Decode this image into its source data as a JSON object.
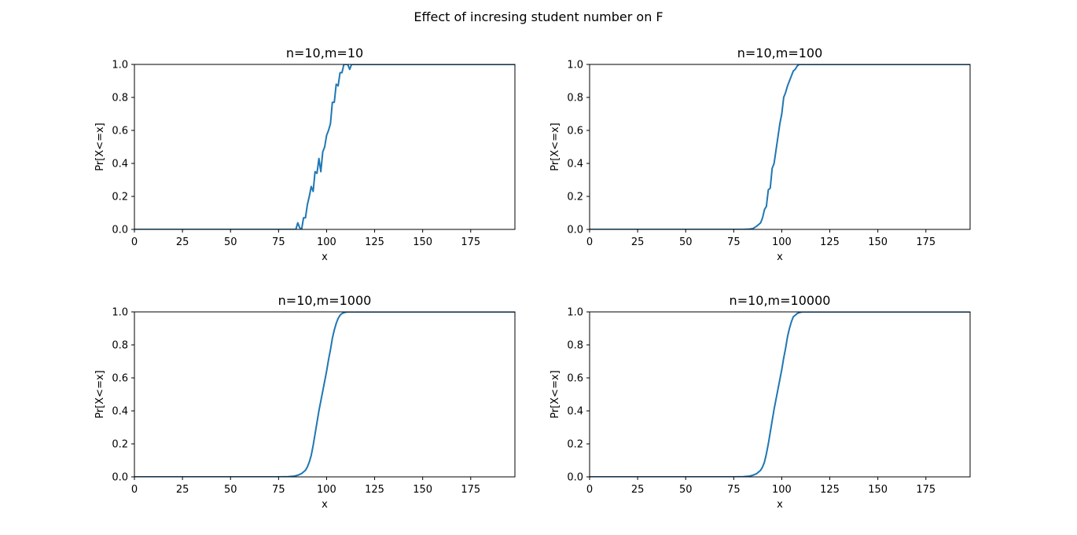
{
  "figure": {
    "title": "Effect of incresing student number on F",
    "line_color": "#1f77b4"
  },
  "chart_data": [
    {
      "type": "line",
      "title": "n=10,m=10",
      "xlabel": "x",
      "ylabel": "Pr[X<=x]",
      "xlim": [
        0,
        198
      ],
      "ylim": [
        0,
        1
      ],
      "xticks": [
        "0",
        "25",
        "50",
        "75",
        "100",
        "125",
        "150",
        "175"
      ],
      "yticks": [
        "0.0",
        "0.2",
        "0.4",
        "0.6",
        "0.8",
        "1.0"
      ],
      "grid": false,
      "series": [
        {
          "x": [
            0,
            84,
            85,
            86,
            87,
            88,
            89,
            90,
            91,
            92,
            93,
            94,
            95,
            96,
            97,
            98,
            99,
            100,
            101,
            102,
            103,
            104,
            105,
            106,
            107,
            108,
            109,
            110,
            111,
            112,
            113,
            114,
            198
          ],
          "y": [
            0,
            0,
            0.04,
            0.01,
            0.0,
            0.07,
            0.07,
            0.15,
            0.2,
            0.26,
            0.23,
            0.35,
            0.34,
            0.43,
            0.35,
            0.47,
            0.5,
            0.57,
            0.6,
            0.64,
            0.77,
            0.77,
            0.88,
            0.87,
            0.95,
            0.95,
            1.0,
            1.0,
            1.0,
            0.97,
            1.0,
            1.0,
            1.0
          ]
        }
      ]
    },
    {
      "type": "line",
      "title": "n=10,m=100",
      "xlabel": "x",
      "ylabel": "Pr[X<=x]",
      "xlim": [
        0,
        198
      ],
      "ylim": [
        0,
        1
      ],
      "xticks": [
        "0",
        "25",
        "50",
        "75",
        "100",
        "125",
        "150",
        "175"
      ],
      "yticks": [
        "0.0",
        "0.2",
        "0.4",
        "0.6",
        "0.8",
        "1.0"
      ],
      "grid": false,
      "series": [
        {
          "x": [
            0,
            80,
            83,
            85,
            87,
            88,
            89,
            90,
            91,
            92,
            93,
            94,
            95,
            96,
            97,
            98,
            99,
            100,
            101,
            102,
            103,
            104,
            105,
            106,
            107,
            108,
            109,
            110,
            111,
            112,
            198
          ],
          "y": [
            0,
            0,
            0.002,
            0.005,
            0.02,
            0.03,
            0.04,
            0.07,
            0.12,
            0.14,
            0.24,
            0.25,
            0.37,
            0.4,
            0.48,
            0.56,
            0.64,
            0.7,
            0.8,
            0.83,
            0.87,
            0.9,
            0.93,
            0.96,
            0.97,
            0.99,
            1.0,
            1.0,
            1.0,
            1.0,
            1.0
          ]
        }
      ]
    },
    {
      "type": "line",
      "title": "n=10,m=1000",
      "xlabel": "x",
      "ylabel": "Pr[X<=x]",
      "xlim": [
        0,
        198
      ],
      "ylim": [
        0,
        1
      ],
      "xticks": [
        "0",
        "25",
        "50",
        "75",
        "100",
        "125",
        "150",
        "175"
      ],
      "yticks": [
        "0.0",
        "0.2",
        "0.4",
        "0.6",
        "0.8",
        "1.0"
      ],
      "grid": false,
      "series": [
        {
          "x": [
            0,
            75,
            80,
            83,
            85,
            87,
            89,
            90,
            91,
            92,
            93,
            94,
            95,
            96,
            97,
            98,
            99,
            100,
            101,
            102,
            103,
            104,
            105,
            106,
            107,
            108,
            109,
            110,
            111,
            112,
            113,
            115,
            120,
            198
          ],
          "y": [
            0,
            0.0,
            0.001,
            0.004,
            0.01,
            0.02,
            0.04,
            0.06,
            0.09,
            0.13,
            0.19,
            0.26,
            0.33,
            0.4,
            0.46,
            0.52,
            0.58,
            0.64,
            0.71,
            0.77,
            0.84,
            0.89,
            0.93,
            0.96,
            0.98,
            0.99,
            0.995,
            0.998,
            1.0,
            1.0,
            1.0,
            1.0,
            1.0,
            1.0
          ]
        }
      ]
    },
    {
      "type": "line",
      "title": "n=10,m=10000",
      "xlabel": "x",
      "ylabel": "Pr[X<=x]",
      "xlim": [
        0,
        198
      ],
      "ylim": [
        0,
        1
      ],
      "xticks": [
        "0",
        "25",
        "50",
        "75",
        "100",
        "125",
        "150",
        "175"
      ],
      "yticks": [
        "0.0",
        "0.2",
        "0.4",
        "0.6",
        "0.8",
        "1.0"
      ],
      "grid": false,
      "series": [
        {
          "x": [
            0,
            75,
            80,
            83,
            85,
            87,
            89,
            90,
            91,
            92,
            93,
            94,
            95,
            96,
            97,
            98,
            99,
            100,
            101,
            102,
            103,
            104,
            105,
            106,
            107,
            108,
            109,
            110,
            111,
            112,
            113,
            115,
            120,
            198
          ],
          "y": [
            0,
            0.0,
            0.001,
            0.004,
            0.01,
            0.02,
            0.04,
            0.06,
            0.09,
            0.14,
            0.2,
            0.27,
            0.34,
            0.41,
            0.47,
            0.53,
            0.59,
            0.65,
            0.72,
            0.78,
            0.85,
            0.9,
            0.94,
            0.97,
            0.98,
            0.99,
            0.995,
            0.998,
            1.0,
            1.0,
            1.0,
            1.0,
            1.0,
            1.0
          ]
        }
      ]
    }
  ]
}
